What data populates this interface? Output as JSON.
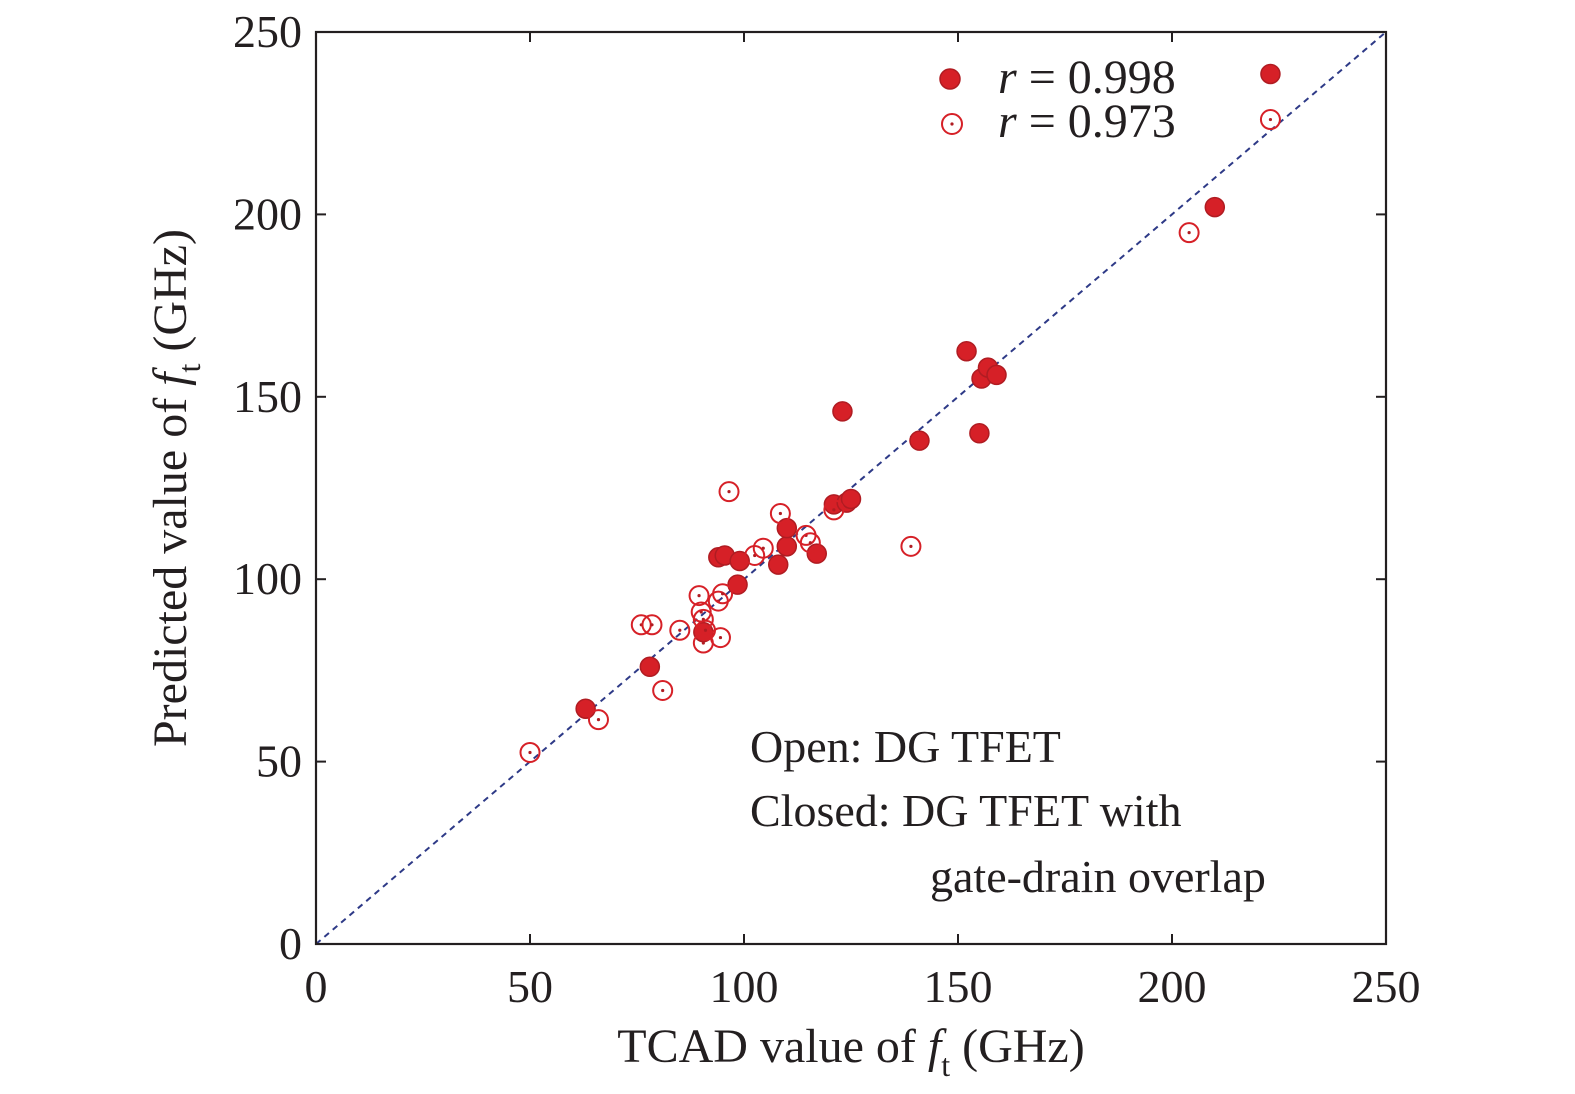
{
  "chart_data": {
    "type": "scatter",
    "title": "",
    "xlabel": {
      "prefix": "TCAD value of ",
      "var": "f",
      "sub": "t",
      "suffix": " (GHz)"
    },
    "ylabel": {
      "prefix": "Predicted value of ",
      "var": "f",
      "sub": "t",
      "suffix": " (GHz)"
    },
    "xlim": [
      0,
      250
    ],
    "ylim": [
      0,
      250
    ],
    "xticks": [
      0,
      50,
      100,
      150,
      200,
      250
    ],
    "yticks": [
      0,
      50,
      100,
      150,
      200,
      250
    ],
    "grid": false,
    "reference_line": {
      "style": "dashed",
      "color": "#2e3a87",
      "from": [
        0,
        0
      ],
      "to": [
        250,
        250
      ]
    },
    "colors": {
      "marker": "#d62027",
      "marker_dark": "#b01c22",
      "axis": "#231f20"
    },
    "legend": {
      "placement": "top-right",
      "entries": [
        {
          "symbol": "filled",
          "var": "r",
          "text": " = 0.998"
        },
        {
          "symbol": "open",
          "var": "r",
          "text": " = 0.973"
        }
      ]
    },
    "annotation": {
      "lines": [
        "Open: DG TFET",
        "Closed: DG TFET with",
        "gate-drain overlap"
      ]
    },
    "series": [
      {
        "name": "DG TFET with gate-drain overlap",
        "marker": "filled",
        "points": [
          [
            63,
            64.5
          ],
          [
            78,
            76
          ],
          [
            90.5,
            85.5
          ],
          [
            94,
            106
          ],
          [
            95.5,
            106.5
          ],
          [
            98.5,
            98.5
          ],
          [
            99,
            105
          ],
          [
            108,
            104
          ],
          [
            110,
            109
          ],
          [
            110,
            114
          ],
          [
            117,
            107
          ],
          [
            121,
            120.5
          ],
          [
            123,
            146
          ],
          [
            124,
            121
          ],
          [
            125,
            122
          ],
          [
            141,
            138
          ],
          [
            152,
            162.5
          ],
          [
            155,
            140
          ],
          [
            155.5,
            155
          ],
          [
            157,
            158
          ],
          [
            159,
            156
          ],
          [
            210,
            202
          ],
          [
            223,
            238.5
          ]
        ]
      },
      {
        "name": "DG TFET",
        "marker": "open",
        "points": [
          [
            50,
            52.5
          ],
          [
            66,
            61.5
          ],
          [
            76,
            87.5
          ],
          [
            78.5,
            87.5
          ],
          [
            81,
            69.5
          ],
          [
            85,
            86
          ],
          [
            89.5,
            95.5
          ],
          [
            90,
            91
          ],
          [
            90.5,
            89
          ],
          [
            90.5,
            82.5
          ],
          [
            91,
            86
          ],
          [
            94,
            94
          ],
          [
            94.5,
            84
          ],
          [
            95,
            96
          ],
          [
            96.5,
            124
          ],
          [
            102.5,
            106.5
          ],
          [
            104.5,
            108.5
          ],
          [
            108.5,
            118
          ],
          [
            114.5,
            112
          ],
          [
            115.5,
            110
          ],
          [
            121,
            119
          ],
          [
            139,
            109
          ],
          [
            204,
            195
          ],
          [
            223,
            226
          ]
        ]
      }
    ]
  }
}
